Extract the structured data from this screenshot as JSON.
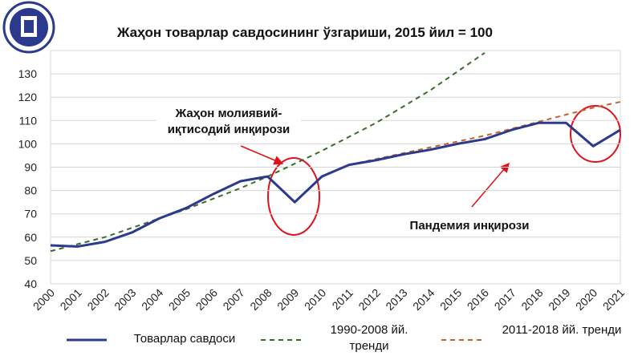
{
  "chart_data": {
    "type": "line",
    "title": "Жаҳон товарлар савдосининг ўзгариши, 2015 йил = 100",
    "categories": [
      "2000",
      "2001",
      "2002",
      "2003",
      "2004",
      "2005",
      "2006",
      "2007",
      "2008",
      "2009",
      "2010",
      "2011",
      "2012",
      "2013",
      "2014",
      "2015",
      "2016",
      "2017",
      "2018",
      "2019",
      "2020",
      "2021"
    ],
    "series": [
      {
        "name": "Товарлар савдоси",
        "color": "#2b3a8c",
        "dash": "none",
        "values": [
          56.5,
          56,
          58,
          62,
          68,
          72.5,
          78.5,
          84,
          86,
          75,
          86,
          91,
          93,
          95.5,
          97.5,
          100,
          102,
          106,
          109,
          109,
          99,
          106
        ]
      },
      {
        "name": "1990-2008 йй. тренди",
        "color": "#3b6a2a",
        "dash": "6,5",
        "values": [
          54,
          57,
          60,
          64,
          68,
          72,
          76.5,
          81,
          86,
          91.5,
          97,
          103,
          109,
          116,
          123,
          131,
          139,
          null,
          null,
          null,
          null,
          null
        ]
      },
      {
        "name": "2011-2018 йй. тренди",
        "color": "#c4622b",
        "dash": "6,5",
        "values": [
          null,
          null,
          null,
          null,
          null,
          null,
          null,
          null,
          null,
          null,
          null,
          91,
          93.5,
          96,
          98.5,
          101,
          103.5,
          106.5,
          109.5,
          112.5,
          115.5,
          118
        ]
      }
    ],
    "ylim": [
      40,
      140
    ],
    "yticks": [
      40,
      50,
      60,
      70,
      80,
      90,
      100,
      110,
      120,
      130
    ],
    "grid": true,
    "annotations": [
      "Жаҳон молиявий-иқтисодий инқирози",
      "Пандемия инқирози"
    ]
  }
}
